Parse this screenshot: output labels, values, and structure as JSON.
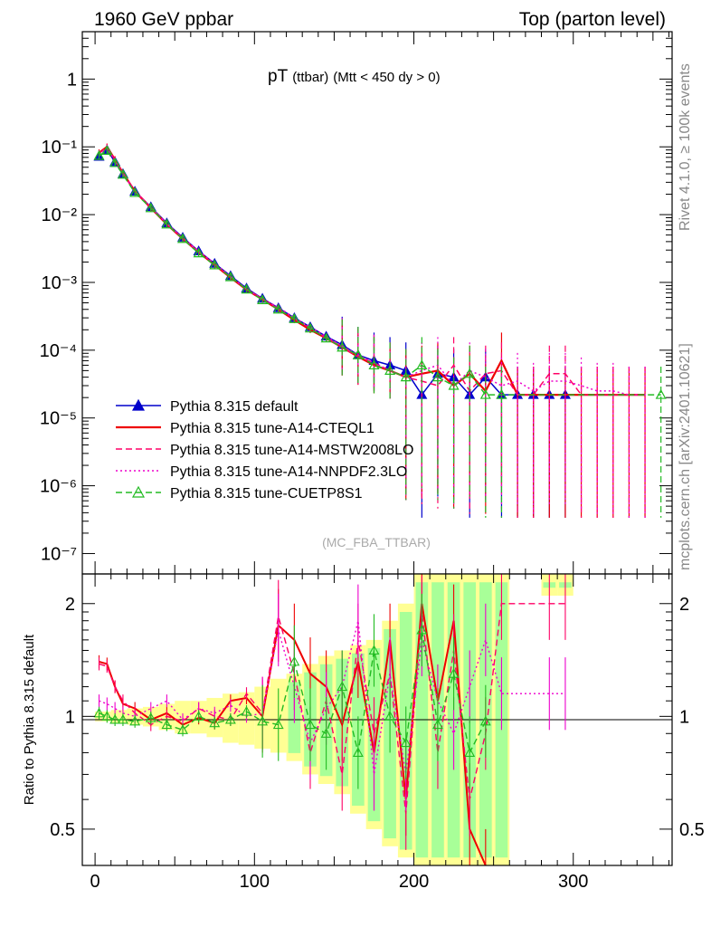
{
  "header": {
    "left": "1960 GeV ppbar",
    "right": "Top (parton level)"
  },
  "side": {
    "rivet": "Rivet 4.1.0, ≥ 100k events",
    "mcplots": "mcplots.cern.ch [arXiv:2401.10621]"
  },
  "chart_data": [
    {
      "type": "line",
      "panel": "main",
      "title": "pT",
      "title_sub": "(ttbar)",
      "title_cut": "(Mtt < 450 dy > 0)",
      "watermark": "(MC_FBA_TTBAR)",
      "xlabel": "",
      "ylabel": "",
      "yscale": "log",
      "xlim": [
        -8,
        362
      ],
      "ylim": [
        5e-08,
        5
      ],
      "y_ticks": [
        {
          "v": 1,
          "label": "1"
        },
        {
          "v": 0.1,
          "label": "10⁻¹"
        },
        {
          "v": 0.01,
          "label": "10⁻²"
        },
        {
          "v": 0.001,
          "label": "10⁻³"
        },
        {
          "v": 0.0001,
          "label": "10⁻⁴"
        },
        {
          "v": 1e-05,
          "label": "10⁻⁵"
        },
        {
          "v": 1e-06,
          "label": "10⁻⁶"
        },
        {
          "v": 1e-07,
          "label": "10⁻⁷"
        }
      ],
      "legend_position": "lower-left",
      "series": [
        {
          "name": "Pythia 8.315 default",
          "color": "#0000cc",
          "style": "solid",
          "marker": "triangle-filled",
          "x": [
            2.5,
            7.5,
            12.5,
            17.5,
            25,
            35,
            45,
            55,
            65,
            75,
            85,
            95,
            105,
            115,
            125,
            135,
            145,
            155,
            165,
            175,
            185,
            195,
            205,
            215,
            225,
            235,
            245,
            255,
            265,
            275,
            285,
            295
          ],
          "y": [
            0.072,
            0.09,
            0.06,
            0.04,
            0.022,
            0.013,
            0.0075,
            0.0046,
            0.0029,
            0.0019,
            0.00125,
            0.00082,
            0.00058,
            0.00042,
            0.0003,
            0.00022,
            0.00016,
            0.00012,
            8.5e-05,
            7e-05,
            6e-05,
            5e-05,
            2.2e-05,
            4.5e-05,
            4e-05,
            2.2e-05,
            4e-05,
            2.2e-05,
            2.2e-05,
            2.2e-05,
            2.2e-05,
            2.2e-05
          ]
        },
        {
          "name": "Pythia 8.315 tune-A14-CTEQL1",
          "color": "#ee0000",
          "style": "solid",
          "marker": "none",
          "x": [
            2.5,
            7.5,
            12.5,
            17.5,
            25,
            35,
            45,
            55,
            65,
            75,
            85,
            95,
            105,
            115,
            125,
            135,
            145,
            155,
            165,
            175,
            185,
            195,
            205,
            215,
            225,
            235,
            245,
            255,
            265,
            275,
            285,
            295,
            305,
            315,
            325,
            335,
            345
          ],
          "y": [
            0.082,
            0.1,
            0.065,
            0.041,
            0.022,
            0.0125,
            0.0072,
            0.0044,
            0.0028,
            0.0018,
            0.00118,
            0.00078,
            0.00056,
            0.0004,
            0.00028,
            0.0002,
            0.00015,
            0.00011,
            8e-05,
            6e-05,
            5e-05,
            4e-05,
            4.5e-05,
            5e-05,
            3e-05,
            4.5e-05,
            2.5e-05,
            7e-05,
            2.2e-05,
            2.2e-05,
            2.2e-05,
            2.2e-05,
            2.2e-05,
            2.2e-05,
            2.2e-05,
            2.2e-05,
            2.2e-05
          ]
        },
        {
          "name": "Pythia 8.315 tune-A14-MSTW2008LO",
          "color": "#ff0066",
          "style": "dashed",
          "marker": "none",
          "x": [
            2.5,
            7.5,
            12.5,
            17.5,
            25,
            35,
            45,
            55,
            65,
            75,
            85,
            95,
            105,
            115,
            125,
            135,
            145,
            155,
            165,
            175,
            185,
            195,
            205,
            215,
            225,
            235,
            245,
            255,
            265,
            275,
            285,
            295,
            305,
            315,
            325,
            335,
            345
          ],
          "y": [
            0.08,
            0.098,
            0.064,
            0.041,
            0.0225,
            0.0128,
            0.0073,
            0.0045,
            0.0028,
            0.00185,
            0.0012,
            0.0008,
            0.00057,
            0.00041,
            0.00029,
            0.00021,
            0.00015,
            0.00011,
            8e-05,
            6.5e-05,
            5e-05,
            4e-05,
            3.5e-05,
            3e-05,
            6e-05,
            2.5e-05,
            4.5e-05,
            5e-05,
            2.2e-05,
            2.2e-05,
            4.5e-05,
            4.5e-05,
            2.2e-05,
            2.2e-05,
            2.2e-05,
            2.2e-05,
            2.2e-05
          ]
        },
        {
          "name": "Pythia 8.315 tune-A14-NNPDF2.3LO",
          "color": "#ee00cc",
          "style": "dotted",
          "marker": "none",
          "x": [
            2.5,
            7.5,
            12.5,
            17.5,
            25,
            35,
            45,
            55,
            65,
            75,
            85,
            95,
            105,
            115,
            125,
            135,
            145,
            155,
            165,
            175,
            185,
            195,
            205,
            215,
            225,
            235,
            245,
            255,
            265,
            275,
            285,
            295,
            305,
            315,
            325,
            335,
            345
          ],
          "y": [
            0.079,
            0.096,
            0.063,
            0.04,
            0.0222,
            0.0127,
            0.0074,
            0.0045,
            0.0029,
            0.0019,
            0.00122,
            0.0008,
            0.00057,
            0.00043,
            0.0003,
            0.00022,
            0.00016,
            0.000115,
            8.5e-05,
            6.5e-05,
            5e-05,
            4e-05,
            5e-05,
            6e-05,
            3e-05,
            5e-05,
            4e-05,
            3e-05,
            3.5e-05,
            2.5e-05,
            3.5e-05,
            3.5e-05,
            3e-05,
            2.5e-05,
            2.5e-05,
            2.2e-05,
            2.2e-05
          ]
        },
        {
          "name": "Pythia 8.315 tune-CUETP8S1",
          "color": "#22bb22",
          "style": "dashed",
          "marker": "triangle-open",
          "x": [
            2.5,
            7.5,
            12.5,
            17.5,
            25,
            35,
            45,
            55,
            65,
            75,
            85,
            95,
            105,
            115,
            125,
            135,
            145,
            155,
            165,
            175,
            185,
            195,
            205,
            215,
            225,
            235,
            245,
            255,
            355
          ],
          "y": [
            0.074,
            0.088,
            0.058,
            0.039,
            0.021,
            0.0125,
            0.0072,
            0.0044,
            0.0027,
            0.0018,
            0.0012,
            0.00079,
            0.00055,
            0.0004,
            0.00029,
            0.00021,
            0.00015,
            0.00011,
            8.5e-05,
            6e-05,
            5e-05,
            4e-05,
            6e-05,
            4e-05,
            3e-05,
            4.5e-05,
            2.2e-05,
            2.2e-05,
            2.2e-05
          ]
        }
      ]
    },
    {
      "type": "line",
      "panel": "ratio",
      "ylabel": "Ratio to Pythia 8.315 default",
      "xlabel": "",
      "yscale": "log",
      "xlim": [
        -8,
        362
      ],
      "ylim": [
        0.4,
        2.4
      ],
      "x_ticks": [
        0,
        100,
        200,
        300
      ],
      "y_ticks": [
        0.5,
        1,
        2
      ],
      "reference": 1,
      "band_yellow": {
        "x": [
          0,
          10,
          20,
          30,
          40,
          50,
          60,
          70,
          80,
          90,
          100,
          110,
          120,
          130,
          140,
          150,
          160,
          170,
          180,
          190,
          200,
          210,
          220,
          230,
          240,
          250,
          280,
          290
        ],
        "lo": [
          0.97,
          0.96,
          0.95,
          0.94,
          0.92,
          0.9,
          0.9,
          0.88,
          0.85,
          0.84,
          0.82,
          0.8,
          0.76,
          0.7,
          0.66,
          0.62,
          0.55,
          0.5,
          0.45,
          0.42,
          0.4,
          0.4,
          0.4,
          0.4,
          0.4,
          0.4,
          2.1,
          2.1
        ],
        "hi": [
          1.03,
          1.04,
          1.05,
          1.06,
          1.08,
          1.1,
          1.1,
          1.12,
          1.15,
          1.16,
          1.2,
          1.26,
          1.3,
          1.38,
          1.45,
          1.5,
          1.55,
          1.6,
          1.8,
          2.0,
          2.4,
          2.4,
          2.4,
          2.4,
          2.4,
          2.4,
          2.4,
          2.4
        ]
      },
      "series": [
        {
          "name": "Pythia 8.315 tune-A14-CTEQL1",
          "color": "#ee0000",
          "x": [
            2.5,
            7.5,
            12.5,
            17.5,
            25,
            35,
            45,
            55,
            65,
            75,
            85,
            95,
            105,
            115,
            125,
            135,
            145,
            155,
            165,
            175,
            185,
            195,
            205,
            215,
            225,
            235,
            245
          ],
          "y": [
            1.4,
            1.38,
            1.2,
            1.08,
            1.05,
            0.98,
            1.02,
            0.95,
            0.99,
            0.96,
            1.1,
            1.12,
            1.0,
            1.75,
            1.6,
            1.3,
            1.2,
            0.95,
            1.4,
            0.8,
            1.6,
            0.6,
            2.0,
            1.1,
            1.8,
            0.5,
            0.4
          ]
        },
        {
          "name": "Pythia 8.315 tune-A14-MSTW2008LO",
          "color": "#ff0066",
          "x": [
            2.5,
            7.5,
            12.5,
            17.5,
            25,
            35,
            45,
            55,
            65,
            75,
            85,
            95,
            105,
            115,
            125,
            135,
            145,
            155,
            165,
            175,
            185,
            195,
            205,
            215,
            225,
            235,
            245,
            255,
            285,
            295
          ],
          "y": [
            1.38,
            1.36,
            1.2,
            1.1,
            1.02,
            0.95,
            1.0,
            0.97,
            1.05,
            1.0,
            0.98,
            1.15,
            1.02,
            1.85,
            1.3,
            0.8,
            1.1,
            0.7,
            1.6,
            0.9,
            1.3,
            0.55,
            1.9,
            0.8,
            1.5,
            0.6,
            0.9,
            2.0,
            2.0,
            2.0
          ]
        },
        {
          "name": "Pythia 8.315 tune-A14-NNPDF2.3LO",
          "color": "#ee00cc",
          "x": [
            2.5,
            7.5,
            12.5,
            17.5,
            25,
            35,
            45,
            55,
            65,
            75,
            85,
            95,
            105,
            115,
            125,
            135,
            145,
            155,
            165,
            175,
            185,
            195,
            205,
            215,
            225,
            235,
            245,
            255,
            285,
            295
          ],
          "y": [
            1.1,
            1.08,
            1.05,
            1.02,
            1.0,
            1.05,
            1.1,
            0.98,
            1.05,
            1.02,
            1.07,
            1.0,
            1.02,
            1.7,
            1.2,
            0.85,
            1.05,
            1.2,
            1.8,
            0.7,
            1.3,
            0.7,
            1.6,
            1.1,
            0.9,
            1.2,
            1.6,
            1.15,
            1.15,
            1.15
          ]
        },
        {
          "name": "Pythia 8.315 tune-CUETP8S1",
          "color": "#22bb22",
          "x": [
            2.5,
            7.5,
            12.5,
            17.5,
            25,
            35,
            45,
            55,
            65,
            75,
            85,
            95,
            105,
            115,
            125,
            135,
            145,
            155,
            165,
            175,
            185,
            195,
            205,
            215,
            225,
            235,
            245
          ],
          "y": [
            1.02,
            1.0,
            0.98,
            0.98,
            0.97,
            0.99,
            0.95,
            0.92,
            1.0,
            0.96,
            0.98,
            1.03,
            0.97,
            0.95,
            1.4,
            0.95,
            0.9,
            1.2,
            0.8,
            1.5,
            1.0,
            0.85,
            1.7,
            0.95,
            1.3,
            0.8,
            0.97
          ]
        }
      ]
    }
  ]
}
